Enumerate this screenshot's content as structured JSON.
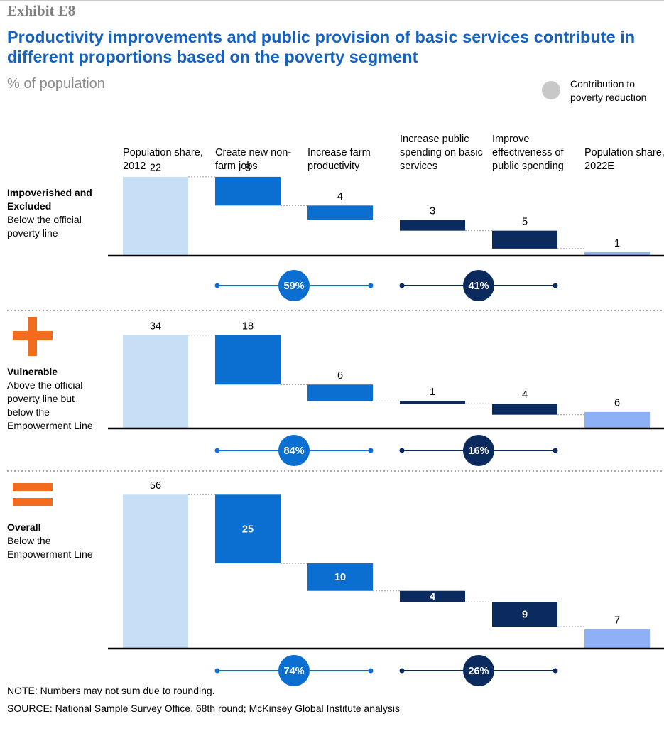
{
  "exhibit": "Exhibit E8",
  "title": "Productivity improvements and public provision of basic services contribute in different proportions based on the poverty segment",
  "subtitle": "% of population",
  "legend": "Contribution to poverty reduction",
  "note": "NOTE: Numbers may not sum due to rounding.",
  "source": "SOURCE: National Sample Survey Office, 68th round; McKinsey Global Institute analysis",
  "chart_data": [
    {
      "type": "waterfall",
      "categories": [
        "Population share, 2012",
        "Create new non-farm jobs",
        "Increase farm productivity",
        "Increase public spending on basic services",
        "Improve effectiveness of public spending",
        "Population share, 2022E"
      ],
      "segment": "Impoverished and Excluded",
      "description": "Below the official poverty line",
      "values": [
        22,
        8,
        4,
        3,
        5,
        1
      ],
      "colors": [
        "#c6dff6",
        "#0b6fd1",
        "#0b6fd1",
        "#0b2a5e",
        "#0b2a5e",
        "#8db0f7"
      ],
      "labels_inside": [
        false,
        false,
        false,
        false,
        false,
        false
      ],
      "contributions": [
        59,
        41
      ],
      "contribution_labels": [
        "59%",
        "41%"
      ],
      "contribution_colors": [
        "#0b6fd1",
        "#0b2a5e"
      ]
    },
    {
      "type": "waterfall",
      "segment": "Vulnerable",
      "description": "Above the official poverty line but below the Empowerment Line",
      "values": [
        34,
        18,
        6,
        1,
        4,
        6
      ],
      "colors": [
        "#c6dff6",
        "#0b6fd1",
        "#0b6fd1",
        "#0b2a5e",
        "#0b2a5e",
        "#8db0f7"
      ],
      "labels_inside": [
        false,
        false,
        false,
        false,
        false,
        false
      ],
      "contributions": [
        84,
        16
      ],
      "contribution_labels": [
        "84%",
        "16%"
      ],
      "contribution_colors": [
        "#0b6fd1",
        "#0b2a5e"
      ]
    },
    {
      "type": "waterfall",
      "segment": "Overall",
      "description": "Below the Empowerment Line",
      "values": [
        56,
        25,
        10,
        4,
        9,
        7
      ],
      "colors": [
        "#c6dff6",
        "#0b6fd1",
        "#0b6fd1",
        "#0b2a5e",
        "#0b2a5e",
        "#8db0f7"
      ],
      "labels_inside": [
        false,
        true,
        true,
        true,
        true,
        false
      ],
      "contributions": [
        74,
        26
      ],
      "contribution_labels": [
        "74%",
        "26%"
      ],
      "contribution_colors": [
        "#0b6fd1",
        "#0b2a5e"
      ]
    }
  ]
}
